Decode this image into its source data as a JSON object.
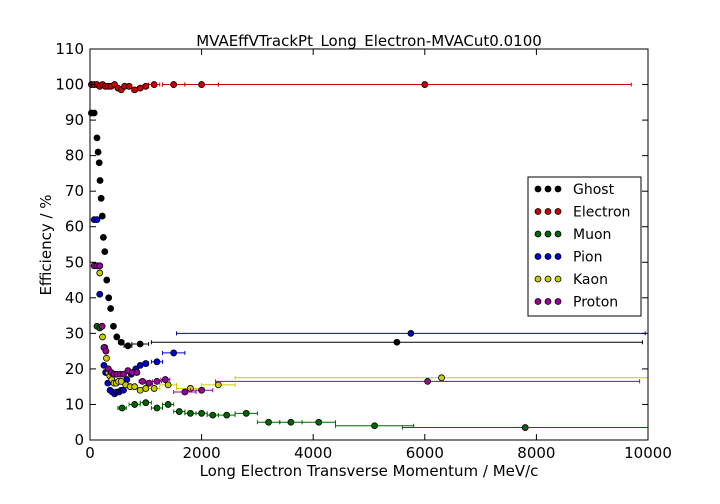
{
  "chart_data": {
    "type": "scatter",
    "title": "MVAEffVTrackPt_Long_Electron-MVACut0.0100",
    "xlabel": "Long Electron Transverse Momentum / MeV/c",
    "ylabel": "Efficiency / %",
    "xlim": [
      0,
      10000
    ],
    "ylim": [
      0,
      110
    ],
    "xticks": [
      "0",
      "2000",
      "4000",
      "6000",
      "8000",
      "10000"
    ],
    "yticks": [
      "0",
      "10",
      "20",
      "30",
      "40",
      "50",
      "60",
      "70",
      "80",
      "90",
      "100",
      "110"
    ],
    "grid": false,
    "legend_position": "right",
    "series": [
      {
        "name": "Ghost",
        "color": "#000000",
        "points": [
          [
            25,
            92,
            25
          ],
          [
            75,
            92,
            25
          ],
          [
            125,
            85,
            25
          ],
          [
            145,
            81,
            15
          ],
          [
            165,
            78,
            15
          ],
          [
            180,
            73,
            15
          ],
          [
            200,
            68,
            15
          ],
          [
            220,
            63,
            15
          ],
          [
            240,
            57,
            15
          ],
          [
            265,
            53,
            15
          ],
          [
            300,
            45,
            20
          ],
          [
            335,
            40,
            20
          ],
          [
            370,
            37,
            20
          ],
          [
            420,
            32,
            25
          ],
          [
            480,
            29,
            30
          ],
          [
            560,
            27.5,
            50
          ],
          [
            680,
            26.5,
            70
          ],
          [
            900,
            27,
            150
          ],
          [
            5500,
            27.5,
            4400
          ]
        ]
      },
      {
        "name": "Electron",
        "color": "#cc0000",
        "points": [
          [
            25,
            100,
            25
          ],
          [
            75,
            100,
            25
          ],
          [
            125,
            100,
            25
          ],
          [
            175,
            99.5,
            25
          ],
          [
            225,
            100,
            25
          ],
          [
            275,
            99.5,
            25
          ],
          [
            325,
            99.5,
            25
          ],
          [
            380,
            99.5,
            30
          ],
          [
            440,
            100,
            30
          ],
          [
            500,
            99,
            30
          ],
          [
            560,
            98.5,
            30
          ],
          [
            620,
            99.5,
            30
          ],
          [
            700,
            99.5,
            50
          ],
          [
            800,
            98.5,
            50
          ],
          [
            900,
            99,
            50
          ],
          [
            1000,
            99.5,
            50
          ],
          [
            1150,
            100,
            100
          ],
          [
            1500,
            100,
            200
          ],
          [
            2000,
            100,
            300
          ],
          [
            6000,
            100,
            3700
          ]
        ]
      },
      {
        "name": "Muon",
        "color": "#006600",
        "points": [
          [
            125,
            32,
            25
          ],
          [
            175,
            31.5,
            25
          ],
          [
            575,
            9,
            75
          ],
          [
            800,
            10,
            100
          ],
          [
            1000,
            10.5,
            100
          ],
          [
            1200,
            9,
            100
          ],
          [
            1400,
            10,
            100
          ],
          [
            1600,
            8,
            100
          ],
          [
            1800,
            7.5,
            100
          ],
          [
            2000,
            7.5,
            100
          ],
          [
            2200,
            7,
            100
          ],
          [
            2450,
            7,
            150
          ],
          [
            2800,
            7.5,
            200
          ],
          [
            3200,
            5,
            200
          ],
          [
            3600,
            5,
            200
          ],
          [
            4100,
            5,
            300
          ],
          [
            5100,
            4,
            700
          ],
          [
            7800,
            3.5,
            2200
          ]
        ]
      },
      {
        "name": "Pion",
        "color": "#0000cc",
        "points": [
          [
            75,
            62,
            25
          ],
          [
            125,
            62,
            25
          ],
          [
            175,
            41,
            25
          ],
          [
            215,
            32,
            15
          ],
          [
            250,
            21,
            15
          ],
          [
            280,
            19,
            15
          ],
          [
            320,
            16,
            15
          ],
          [
            360,
            14,
            15
          ],
          [
            400,
            13.5,
            15
          ],
          [
            440,
            13,
            15
          ],
          [
            480,
            13.5,
            15
          ],
          [
            520,
            13.5,
            15
          ],
          [
            560,
            14,
            15
          ],
          [
            600,
            14,
            15
          ],
          [
            660,
            17,
            30
          ],
          [
            740,
            18.5,
            40
          ],
          [
            820,
            20,
            40
          ],
          [
            900,
            21,
            40
          ],
          [
            1000,
            21.5,
            50
          ],
          [
            1200,
            22,
            100
          ],
          [
            1500,
            24.5,
            200
          ],
          [
            5750,
            30,
            4200
          ]
        ]
      },
      {
        "name": "Kaon",
        "color": "#cccc00",
        "points": [
          [
            175,
            47,
            25
          ],
          [
            225,
            29,
            25
          ],
          [
            265,
            26,
            15
          ],
          [
            295,
            23,
            15
          ],
          [
            325,
            19,
            15
          ],
          [
            355,
            18,
            15
          ],
          [
            390,
            17,
            15
          ],
          [
            430,
            16,
            15
          ],
          [
            470,
            16,
            15
          ],
          [
            510,
            16.5,
            15
          ],
          [
            560,
            16.5,
            30
          ],
          [
            640,
            15.5,
            40
          ],
          [
            720,
            15,
            40
          ],
          [
            800,
            15,
            40
          ],
          [
            900,
            14,
            50
          ],
          [
            1000,
            14.5,
            50
          ],
          [
            1150,
            14.5,
            100
          ],
          [
            1400,
            15.5,
            150
          ],
          [
            1800,
            14.5,
            250
          ],
          [
            2300,
            15.5,
            300
          ],
          [
            6300,
            17.5,
            3700
          ]
        ]
      },
      {
        "name": "Proton",
        "color": "#990099",
        "points": [
          [
            75,
            49,
            25
          ],
          [
            125,
            49,
            25
          ],
          [
            175,
            49,
            25
          ],
          [
            215,
            32,
            15
          ],
          [
            250,
            26,
            15
          ],
          [
            285,
            25,
            15
          ],
          [
            330,
            20,
            20
          ],
          [
            380,
            19,
            20
          ],
          [
            430,
            18.5,
            20
          ],
          [
            480,
            18.5,
            20
          ],
          [
            540,
            18.5,
            30
          ],
          [
            600,
            18.5,
            30
          ],
          [
            680,
            19.5,
            40
          ],
          [
            760,
            19,
            40
          ],
          [
            840,
            19,
            40
          ],
          [
            940,
            16.5,
            60
          ],
          [
            1060,
            16,
            60
          ],
          [
            1200,
            16.5,
            80
          ],
          [
            1350,
            17,
            80
          ],
          [
            1700,
            13.5,
            200
          ],
          [
            2000,
            14,
            200
          ],
          [
            6050,
            16.5,
            3800
          ]
        ]
      }
    ]
  }
}
